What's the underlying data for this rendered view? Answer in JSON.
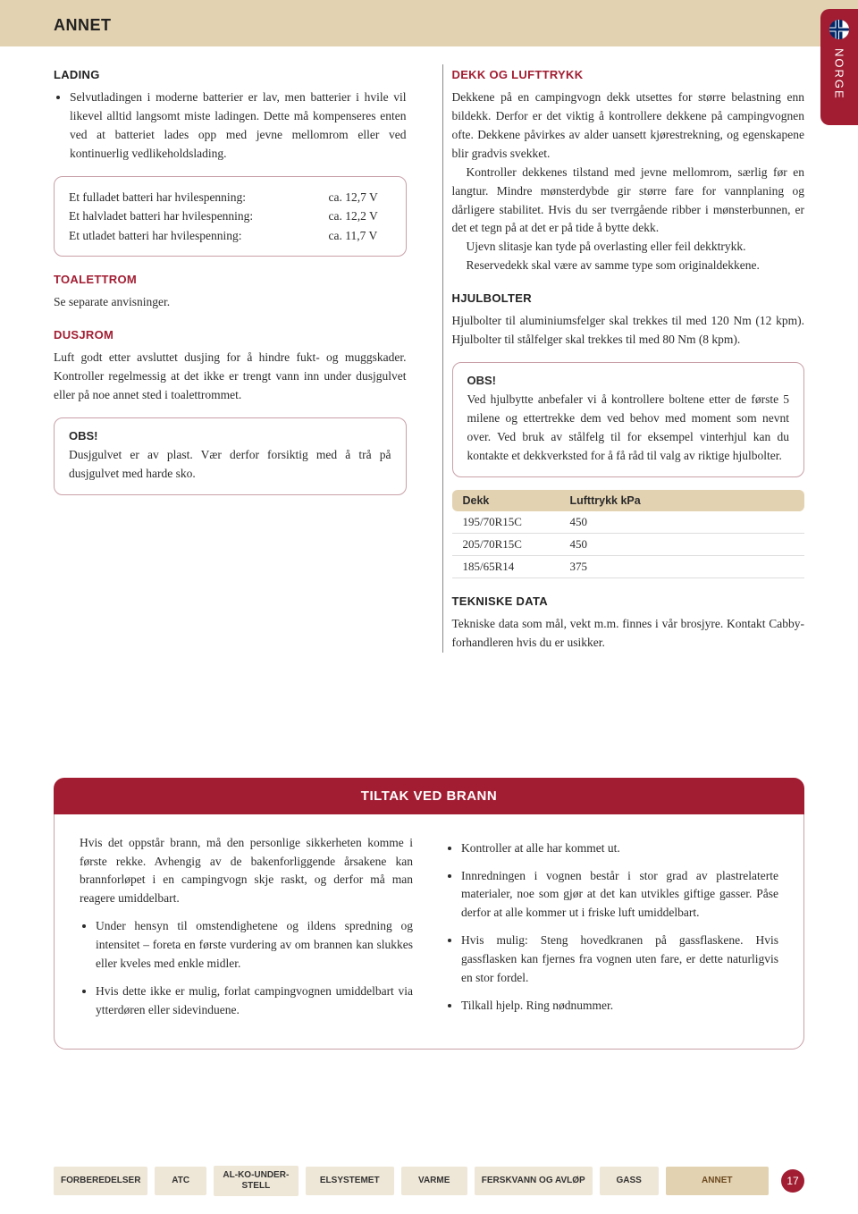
{
  "page": {
    "title": "ANNET",
    "side_tab": "NORGE",
    "page_number": "17"
  },
  "left": {
    "lading": {
      "heading": "LADING",
      "bullet": "Selvutladingen i moderne batterier er lav, men batterier i hvile vil likevel alltid langsomt miste ladingen. Dette må kompenseres enten ved at batteriet lades opp med jevne mellomrom eller ved kontinuerlig vedlikeholdslading."
    },
    "battery_box": {
      "rows": [
        {
          "label": "Et fulladet batteri har hvilespenning:",
          "value": "ca. 12,7 V"
        },
        {
          "label": "Et halvladet batteri har hvilespenning:",
          "value": "ca. 12,2 V"
        },
        {
          "label": "Et utladet batteri har hvilespenning:",
          "value": "ca. 11,7 V"
        }
      ]
    },
    "toalettrom": {
      "heading": "TOALETTROM",
      "text": "Se separate anvisninger."
    },
    "dusjrom": {
      "heading": "DUSJROM",
      "text": "Luft godt etter avsluttet dusjing for å hindre fukt- og muggskader. Kontroller regelmessig at det ikke er trengt vann inn under dusjgulvet eller på noe annet sted i toalettrommet."
    },
    "obs": {
      "label": "OBS!",
      "text": "Dusjgulvet er av plast. Vær derfor forsiktig med å trå på dusjgulvet med harde sko."
    }
  },
  "right": {
    "dekk": {
      "heading": "DEKK OG LUFTTRYKK",
      "p1": "Dekkene på en campingvogn dekk utsettes for større belastning enn bildekk. Derfor er det viktig å kontrollere dekkene på campingvognen ofte. Dekkene påvirkes av alder uansett kjørestrekning, og egenskapene blir gradvis svekket.",
      "p2": "Kontroller dekkenes tilstand med jevne mellomrom, særlig før en langtur. Mindre mønsterdybde gir større fare for vannplaning og dårligere stabilitet. Hvis du ser tverrgående ribber i mønsterbunnen, er det et tegn på at det er på tide å bytte dekk.",
      "p3": "Ujevn slitasje kan tyde på overlasting eller feil dekktrykk.",
      "p4": "Reservedekk skal være av samme type som originaldekkene."
    },
    "hjulbolter": {
      "heading": "HJULBOLTER",
      "text": "Hjulbolter til aluminiumsfelger skal trekkes til med 120 Nm (12 kpm). Hjulbolter til stålfelger skal trekkes til med 80 Nm (8 kpm)."
    },
    "obs": {
      "label": "OBS!",
      "text": "Ved hjulbytte anbefaler vi å kontrollere boltene etter de første 5 milene og ettertrekke dem ved behov med moment som nevnt over. Ved bruk av stålfelg til for eksempel vinterhjul kan du kontakte et dekkverksted for å få råd til valg av riktige hjulbolter."
    },
    "table": {
      "headers": [
        "Dekk",
        "Lufttrykk kPa"
      ],
      "rows": [
        [
          "195/70R15C",
          "450"
        ],
        [
          "205/70R15C",
          "450"
        ],
        [
          "185/65R14",
          "375"
        ]
      ]
    },
    "tekniske": {
      "heading": "TEKNISKE DATA",
      "text": "Tekniske data som mål, vekt m.m. finnes i vår brosjyre. Kontakt Cabby-forhandleren hvis du er usikker."
    }
  },
  "fire": {
    "heading": "TILTAK VED BRANN",
    "left": {
      "intro": "Hvis det oppstår brann, må den personlige sikkerheten komme i første rekke. Avhengig av de bakenforliggende årsakene kan brannforløpet i en campingvogn skje raskt, og derfor må man reagere umiddelbart.",
      "bullets": [
        "Under hensyn til omstendighetene og ildens spredning og intensitet – foreta en første vurdering av om brannen kan slukkes eller kveles med enkle midler.",
        "Hvis dette ikke er mulig, forlat campingvognen umiddelbart via ytterdøren eller sidevinduene."
      ]
    },
    "right": {
      "bullets": [
        "Kontroller at alle har kommet ut.",
        "Innredningen i vognen består i stor grad av plastrelaterte materialer, noe som gjør at det kan utvikles giftige gasser. Påse derfor at alle kommer ut i friske luft umiddelbart.",
        "Hvis mulig: Steng hovedkranen på gassflaskene. Hvis gassflasken kan fjernes fra vognen uten fare, er dette naturligvis en stor fordel.",
        "Tilkall hjelp. Ring nødnummer."
      ]
    }
  },
  "nav": {
    "items": [
      "FORBEREDELSER",
      "ATC",
      "AL-KO-UNDER-STELL",
      "ELSYSTEMET",
      "VARME",
      "FERSKVANN OG AVLØP",
      "GASS",
      "ANNET"
    ]
  },
  "colors": {
    "beige": "#e3d2b1",
    "red": "#a21d32",
    "box_border": "#c9a0a8"
  }
}
